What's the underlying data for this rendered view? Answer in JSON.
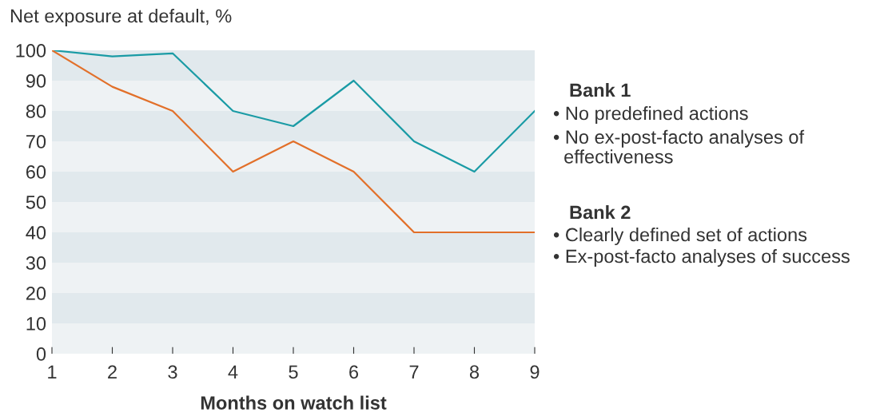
{
  "chart_data": {
    "type": "line",
    "ylabel": "Net exposure at default, %",
    "xlabel": "Months on watch list",
    "x": [
      1,
      2,
      3,
      4,
      5,
      6,
      7,
      8,
      9
    ],
    "series": [
      {
        "color": "#1a9ba5",
        "values": [
          100,
          98,
          99,
          80,
          75,
          90,
          70,
          60,
          80
        ]
      },
      {
        "color": "#e2702a",
        "values": [
          100,
          88,
          80,
          60,
          70,
          60,
          40,
          40,
          40
        ]
      }
    ],
    "xlim": [
      1,
      9
    ],
    "xticks": [
      1,
      2,
      3,
      4,
      5,
      6,
      7,
      8,
      9
    ],
    "ylim": [
      0,
      100
    ],
    "yticks": [
      0,
      10,
      20,
      30,
      40,
      50,
      60,
      70,
      80,
      90,
      100
    ],
    "bands": [
      {
        "axis": "y",
        "from": 0,
        "to": 10,
        "color": "#eef2f4"
      },
      {
        "axis": "y",
        "from": 10,
        "to": 20,
        "color": "#e1e9ed"
      },
      {
        "axis": "y",
        "from": 20,
        "to": 30,
        "color": "#eef2f4"
      },
      {
        "axis": "y",
        "from": 30,
        "to": 40,
        "color": "#e1e9ed"
      },
      {
        "axis": "y",
        "from": 40,
        "to": 50,
        "color": "#eef2f4"
      },
      {
        "axis": "y",
        "from": 50,
        "to": 60,
        "color": "#e1e9ed"
      },
      {
        "axis": "y",
        "from": 60,
        "to": 70,
        "color": "#eef2f4"
      },
      {
        "axis": "y",
        "from": 70,
        "to": 80,
        "color": "#e1e9ed"
      },
      {
        "axis": "y",
        "from": 80,
        "to": 90,
        "color": "#eef2f4"
      },
      {
        "axis": "y",
        "from": 90,
        "to": 100,
        "color": "#e1e9ed"
      }
    ],
    "annotations": [
      "Bank 1",
      "• No predefined actions",
      "• No ex-post-facto analyses of\n  effectiveness",
      "Bank 2",
      "• Clearly defined set of actions",
      "• Ex-post-facto analyses of success"
    ],
    "grid": false,
    "marker": "none",
    "line_style": "solid"
  }
}
